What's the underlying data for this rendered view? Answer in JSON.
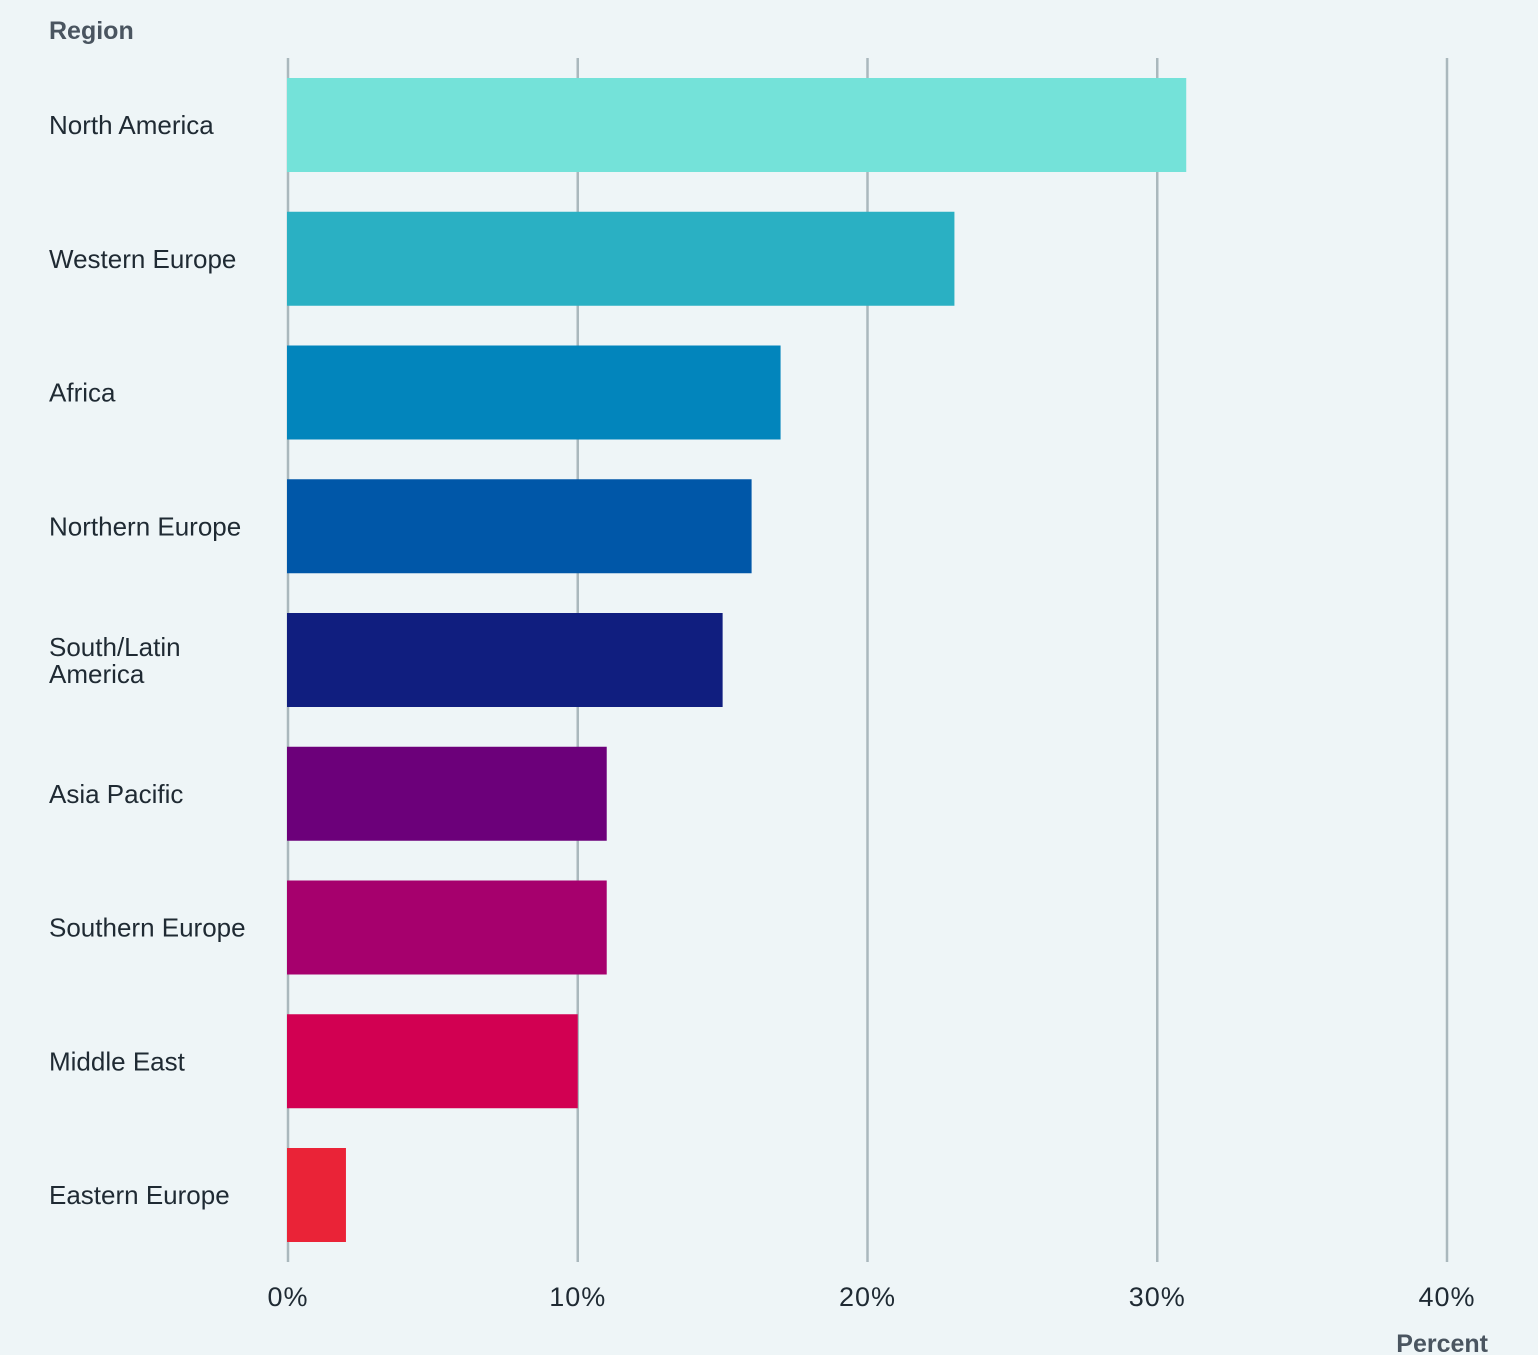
{
  "chart_data": {
    "type": "bar",
    "orientation": "horizontal",
    "ylabel": "Region",
    "xlabel": "Percent",
    "categories": [
      "North America",
      "Western Europe",
      "Africa",
      "Northern Europe",
      "South/Latin America",
      "Asia Pacific",
      "Southern Europe",
      "Middle East",
      "Eastern Europe"
    ],
    "values": [
      31,
      23,
      17,
      16,
      15,
      11,
      11,
      10,
      2
    ],
    "colors": [
      "#74e2d9",
      "#2ab0c3",
      "#0285bc",
      "#0057a8",
      "#101e7f",
      "#6c007a",
      "#a6006d",
      "#d20052",
      "#ea2337"
    ],
    "xlim": [
      0,
      40
    ],
    "xticks": [
      0,
      10,
      20,
      30,
      40
    ],
    "xtick_labels": [
      "0%",
      "10%",
      "20%",
      "30%",
      "40%"
    ],
    "grid": true,
    "legend": "none"
  }
}
